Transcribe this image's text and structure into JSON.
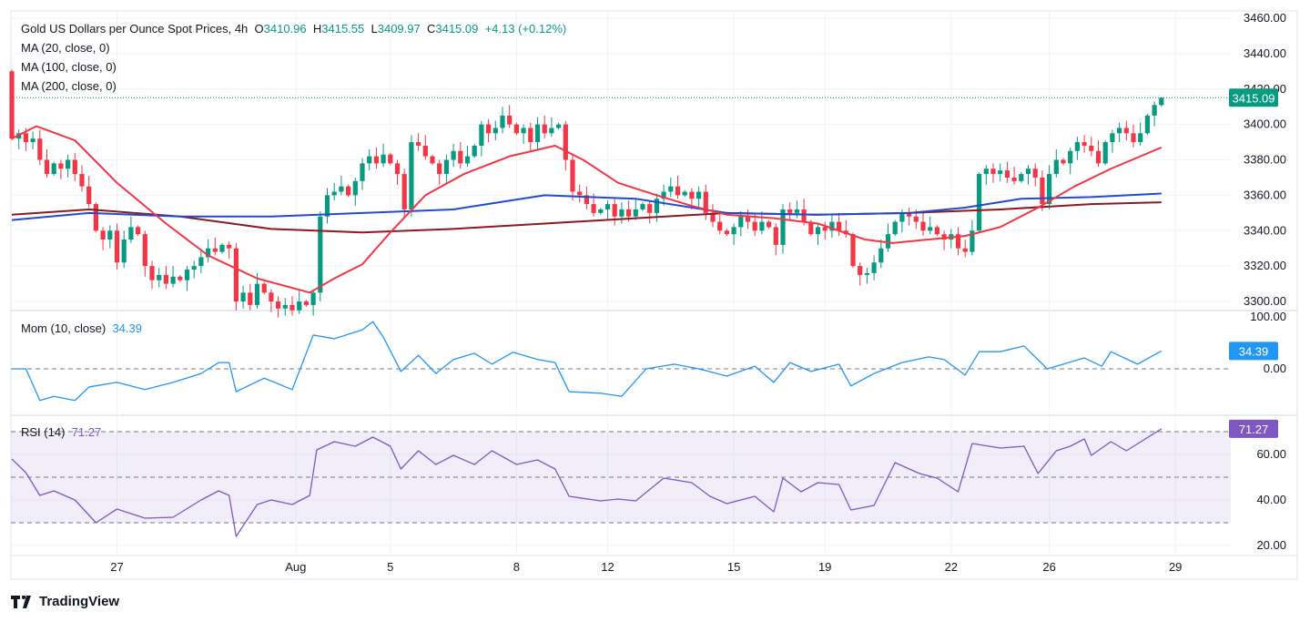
{
  "header": {
    "symbol": "Gold US Dollars per Ounce Spot Prices, 4h",
    "o_label": "O",
    "o": "3410.96",
    "h_label": "H",
    "h": "3415.55",
    "l_label": "L",
    "l": "3409.97",
    "c_label": "C",
    "c": "3415.09",
    "change": "+4.13 (+0.12%)",
    "ma20": "MA (20, close, 0)",
    "ma100": "MA (100, close, 0)",
    "ma200": "MA (200, close, 0)"
  },
  "mom": {
    "label": "Mom (10, close)",
    "value": "34.39"
  },
  "rsi": {
    "label": "RSI (14)",
    "value": "71.27"
  },
  "brand": "TradingView",
  "colors": {
    "up": "#089981",
    "down": "#f23645",
    "ma20": "#f23645",
    "ma100": "#1e4bd2",
    "ma200": "#8b1a1f",
    "mom": "#2196f3",
    "rsi": "#7e57c2"
  },
  "chart_data": [
    {
      "type": "candlestick",
      "title": "Gold US Dollars per Ounce Spot Prices, 4h",
      "ylim": [
        3290,
        3465
      ],
      "yticks": [
        "3300.00",
        "3320.00",
        "3340.00",
        "3360.00",
        "3380.00",
        "3400.00",
        "3420.00",
        "3440.00",
        "3460.00"
      ],
      "xticks": [
        {
          "bar": 15,
          "label": "27"
        },
        {
          "bar": 40.5,
          "label": "Aug"
        },
        {
          "bar": 54,
          "label": "5"
        },
        {
          "bar": 72,
          "label": "8"
        },
        {
          "bar": 85,
          "label": "12"
        },
        {
          "bar": 103,
          "label": "15"
        },
        {
          "bar": 116,
          "label": "19"
        },
        {
          "bar": 134,
          "label": "22"
        },
        {
          "bar": 148,
          "label": "26"
        },
        {
          "bar": 166,
          "label": "29"
        }
      ],
      "first_open": 3430,
      "closes": [
        3392,
        3395,
        3390,
        3392,
        3380,
        3372,
        3378,
        3375,
        3380,
        3372,
        3365,
        3355,
        3340,
        3335,
        3340,
        3322,
        3335,
        3342,
        3338,
        3320,
        3312,
        3315,
        3310,
        3314,
        3312,
        3318,
        3320,
        3325,
        3330,
        3328,
        3332,
        3330,
        3300,
        3305,
        3298,
        3310,
        3305,
        3300,
        3296,
        3298,
        3295,
        3300,
        3298,
        3305,
        3348,
        3360,
        3362,
        3365,
        3360,
        3368,
        3378,
        3382,
        3378,
        3383,
        3378,
        3372,
        3352,
        3390,
        3388,
        3382,
        3378,
        3372,
        3380,
        3385,
        3378,
        3382,
        3388,
        3400,
        3395,
        3398,
        3405,
        3400,
        3395,
        3398,
        3390,
        3400,
        3395,
        3398,
        3400,
        3380,
        3362,
        3360,
        3355,
        3350,
        3352,
        3355,
        3348,
        3352,
        3348,
        3352,
        3355,
        3350,
        3358,
        3362,
        3365,
        3360,
        3362,
        3358,
        3362,
        3350,
        3345,
        3340,
        3338,
        3342,
        3348,
        3345,
        3340,
        3345,
        3342,
        3332,
        3352,
        3350,
        3352,
        3345,
        3338,
        3342,
        3340,
        3345,
        3340,
        3338,
        3320,
        3315,
        3316,
        3322,
        3330,
        3338,
        3345,
        3350,
        3348,
        3345,
        3340,
        3342,
        3338,
        3335,
        3338,
        3330,
        3328,
        3340,
        3372,
        3375,
        3372,
        3374,
        3370,
        3368,
        3372,
        3375,
        3370,
        3355,
        3372,
        3380,
        3378,
        3385,
        3390,
        3388,
        3385,
        3378,
        3390,
        3395,
        3398,
        3395,
        3390,
        3395,
        3405,
        3410.96,
        3415.09
      ],
      "last_candle": {
        "o": 3410.96,
        "h": 3415.55,
        "l": 3409.97,
        "c": 3415.09
      },
      "last_price": "3415.09",
      "series": [
        {
          "name": "MA (20, close, 0)",
          "points": [
            [
              0,
              3392
            ],
            [
              3.5,
              3399
            ],
            [
              9,
              3391
            ],
            [
              15,
              3367
            ],
            [
              22,
              3344
            ],
            [
              28,
              3326
            ],
            [
              35,
              3313
            ],
            [
              42.5,
              3305
            ],
            [
              46,
              3313
            ],
            [
              50,
              3321
            ],
            [
              54,
              3339
            ],
            [
              59,
              3360
            ],
            [
              64.5,
              3372
            ],
            [
              71,
              3382
            ],
            [
              77.5,
              3388
            ],
            [
              81.5,
              3380
            ],
            [
              86.5,
              3367
            ],
            [
              92,
              3360
            ],
            [
              97,
              3354
            ],
            [
              102,
              3349
            ],
            [
              108.7,
              3347
            ],
            [
              115,
              3344
            ],
            [
              121.7,
              3335
            ],
            [
              125.6,
              3333
            ],
            [
              130.8,
              3335
            ],
            [
              136,
              3337
            ],
            [
              141,
              3342
            ],
            [
              146.4,
              3353
            ],
            [
              151.6,
              3365
            ],
            [
              156.8,
              3375
            ],
            [
              164,
              3387
            ]
          ]
        },
        {
          "name": "MA (100, close, 0)",
          "points": [
            [
              0,
              3346
            ],
            [
              11,
              3350
            ],
            [
              24,
              3348
            ],
            [
              37,
              3348
            ],
            [
              50,
              3350
            ],
            [
              63,
              3352
            ],
            [
              76,
              3360
            ],
            [
              89,
              3358
            ],
            [
              102,
              3350
            ],
            [
              115,
              3349
            ],
            [
              128,
              3350
            ],
            [
              136,
              3353
            ],
            [
              144,
              3358
            ],
            [
              154,
              3359
            ],
            [
              164,
              3361
            ]
          ]
        },
        {
          "name": "MA (200, close, 0)",
          "points": [
            [
              0,
              3349
            ],
            [
              11,
              3352
            ],
            [
              24,
              3348
            ],
            [
              37,
              3341
            ],
            [
              50,
              3339
            ],
            [
              63,
              3341
            ],
            [
              76,
              3344
            ],
            [
              89,
              3347
            ],
            [
              102,
              3350
            ],
            [
              115,
              3349
            ],
            [
              128,
              3350
            ],
            [
              141,
              3352
            ],
            [
              154,
              3355
            ],
            [
              164,
              3356
            ]
          ]
        }
      ]
    },
    {
      "type": "line",
      "name": "Mom (10, close)",
      "ylim": [
        -100,
        100
      ],
      "yticks": [
        "100.00",
        "0.00"
      ],
      "points": [
        [
          0,
          0
        ],
        [
          2,
          0
        ],
        [
          4,
          -61
        ],
        [
          6,
          -53
        ],
        [
          9,
          -61
        ],
        [
          11,
          -35
        ],
        [
          15,
          -26
        ],
        [
          19,
          -40
        ],
        [
          23,
          -26
        ],
        [
          27,
          -9
        ],
        [
          29.5,
          12
        ],
        [
          31,
          12
        ],
        [
          32,
          -44
        ],
        [
          36,
          -18
        ],
        [
          40,
          -40
        ],
        [
          43,
          65
        ],
        [
          46,
          58
        ],
        [
          50,
          75
        ],
        [
          51.5,
          91
        ],
        [
          53,
          61
        ],
        [
          55.5,
          -5
        ],
        [
          58,
          26
        ],
        [
          60.5,
          -9
        ],
        [
          63,
          18
        ],
        [
          66,
          30
        ],
        [
          68.5,
          9
        ],
        [
          71.5,
          32
        ],
        [
          75,
          18
        ],
        [
          77.5,
          12
        ],
        [
          79.5,
          -44
        ],
        [
          84,
          -47
        ],
        [
          87,
          -53
        ],
        [
          90.5,
          0
        ],
        [
          94.5,
          9
        ],
        [
          98,
          0
        ],
        [
          102,
          -14
        ],
        [
          106,
          5
        ],
        [
          108.7,
          -26
        ],
        [
          111,
          12
        ],
        [
          114,
          -5
        ],
        [
          118,
          9
        ],
        [
          119.7,
          -33
        ],
        [
          123,
          -9
        ],
        [
          127,
          12
        ],
        [
          130.8,
          23
        ],
        [
          133,
          18
        ],
        [
          136,
          -12
        ],
        [
          138,
          33
        ],
        [
          141,
          33
        ],
        [
          144.4,
          44
        ],
        [
          147.7,
          0
        ],
        [
          150,
          9
        ],
        [
          153,
          21
        ],
        [
          155.5,
          5
        ],
        [
          156.8,
          33
        ],
        [
          160.6,
          9
        ],
        [
          164,
          34.39
        ]
      ]
    },
    {
      "type": "line",
      "name": "RSI (14)",
      "ylim": [
        15,
        85
      ],
      "yticks": [
        "60.00",
        "40.00",
        "20.00"
      ],
      "bands": [
        30,
        50,
        70
      ],
      "points": [
        [
          0,
          58
        ],
        [
          2,
          52
        ],
        [
          4,
          42
        ],
        [
          6,
          44
        ],
        [
          9,
          40
        ],
        [
          12,
          30
        ],
        [
          15,
          36
        ],
        [
          19,
          32
        ],
        [
          23,
          32.4
        ],
        [
          27,
          40
        ],
        [
          29.5,
          44
        ],
        [
          31,
          42
        ],
        [
          32,
          24
        ],
        [
          35,
          38
        ],
        [
          37,
          40
        ],
        [
          40,
          38
        ],
        [
          42.5,
          42
        ],
        [
          43.5,
          62
        ],
        [
          46,
          65.6
        ],
        [
          49,
          63.6
        ],
        [
          51.5,
          67.6
        ],
        [
          54,
          63.6
        ],
        [
          55.5,
          53.6
        ],
        [
          58,
          61.6
        ],
        [
          60.5,
          55.6
        ],
        [
          63,
          59.6
        ],
        [
          66,
          55.6
        ],
        [
          68.5,
          61.6
        ],
        [
          72,
          55.6
        ],
        [
          75,
          57.6
        ],
        [
          77.5,
          53.6
        ],
        [
          79.5,
          41.6
        ],
        [
          84,
          39.6
        ],
        [
          86.5,
          40.4
        ],
        [
          89,
          39.6
        ],
        [
          93,
          49.6
        ],
        [
          97,
          47.6
        ],
        [
          99.6,
          41.6
        ],
        [
          102,
          38.4
        ],
        [
          106,
          41.6
        ],
        [
          108.7,
          34.8
        ],
        [
          110,
          49.6
        ],
        [
          112.6,
          43.6
        ],
        [
          115,
          47.6
        ],
        [
          118,
          46.8
        ],
        [
          119.7,
          35.6
        ],
        [
          123,
          37.6
        ],
        [
          126,
          56.4
        ],
        [
          129.5,
          51.6
        ],
        [
          132,
          49.6
        ],
        [
          135,
          43.6
        ],
        [
          137,
          64.8
        ],
        [
          141,
          62.8
        ],
        [
          144.4,
          63.6
        ],
        [
          146.4,
          51.6
        ],
        [
          149,
          61.6
        ],
        [
          151,
          63.6
        ],
        [
          153,
          66.8
        ],
        [
          154,
          59.6
        ],
        [
          156.8,
          65.6
        ],
        [
          159,
          61.6
        ],
        [
          164,
          71.27
        ]
      ]
    }
  ]
}
